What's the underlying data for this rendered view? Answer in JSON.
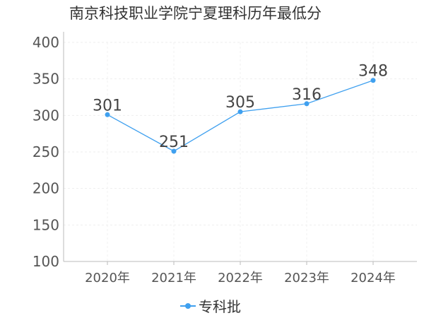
{
  "chart_data": {
    "type": "line",
    "title": "南京科技职业学院宁夏理科历年最低分",
    "categories": [
      "2020年",
      "2021年",
      "2022年",
      "2023年",
      "2024年"
    ],
    "series": [
      {
        "name": "专科批",
        "values": [
          301,
          251,
          305,
          316,
          348
        ],
        "color": "#3fa0ef"
      }
    ],
    "ylim": [
      100,
      400
    ],
    "yticks": [
      100,
      150,
      200,
      250,
      300,
      350,
      400
    ],
    "grid": true,
    "legend": "bottom-center"
  }
}
